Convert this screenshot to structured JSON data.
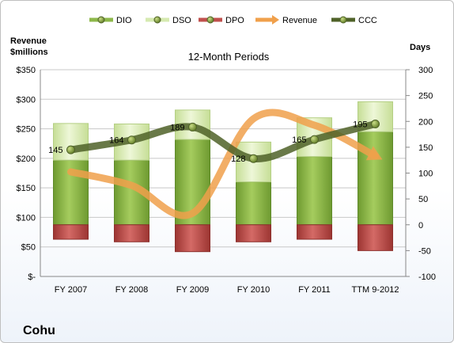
{
  "company": "Cohu",
  "chart_data": {
    "type": "bar",
    "title": "12-Month Periods",
    "categories": [
      "FY 2007",
      "FY 2008",
      "FY 2009",
      "FY 2010",
      "FY 2011",
      "TTM 9-2012"
    ],
    "left_axis": {
      "label_line1": "Revenue",
      "label_line2": "$millions",
      "ylim": [
        0,
        350
      ],
      "ticks": [
        0,
        50,
        100,
        150,
        200,
        250,
        300,
        350
      ],
      "tick_labels": [
        "$-",
        "$50",
        "$100",
        "$150",
        "$200",
        "$250",
        "$300",
        "$350"
      ]
    },
    "right_axis": {
      "label": "Days",
      "ylim": [
        -100,
        300
      ],
      "ticks": [
        -100,
        -50,
        0,
        50,
        100,
        150,
        200,
        250,
        300
      ],
      "tick_labels": [
        "-100",
        "-50",
        "0",
        "50",
        "100",
        "150",
        "200",
        "250",
        "300"
      ]
    },
    "legend_position": "top",
    "grid": true,
    "series": [
      {
        "name": "DIO",
        "axis": "right",
        "kind": "stacked-bar",
        "color": "#8db84a",
        "values": [
          125,
          125,
          165,
          83,
          132,
          180
        ]
      },
      {
        "name": "DSO",
        "axis": "right",
        "kind": "stacked-bar",
        "color": "#d6eab0",
        "values": [
          71,
          70,
          57,
          77,
          75,
          58
        ]
      },
      {
        "name": "DPO",
        "axis": "right",
        "kind": "stacked-bar-negative",
        "color": "#c0504d",
        "values": [
          -28,
          -33,
          -52,
          -33,
          -28,
          -50
        ]
      },
      {
        "name": "Revenue",
        "axis": "left",
        "kind": "line",
        "color": "#f0a04b",
        "values": [
          177,
          154,
          107,
          267,
          256,
          204
        ]
      },
      {
        "name": "CCC",
        "axis": "right",
        "kind": "line-markers",
        "color": "#4f6228",
        "values": [
          145,
          164,
          189,
          128,
          165,
          195
        ]
      }
    ],
    "data_labels": [
      "145",
      "164",
      "189",
      "128",
      "165",
      "195"
    ]
  }
}
